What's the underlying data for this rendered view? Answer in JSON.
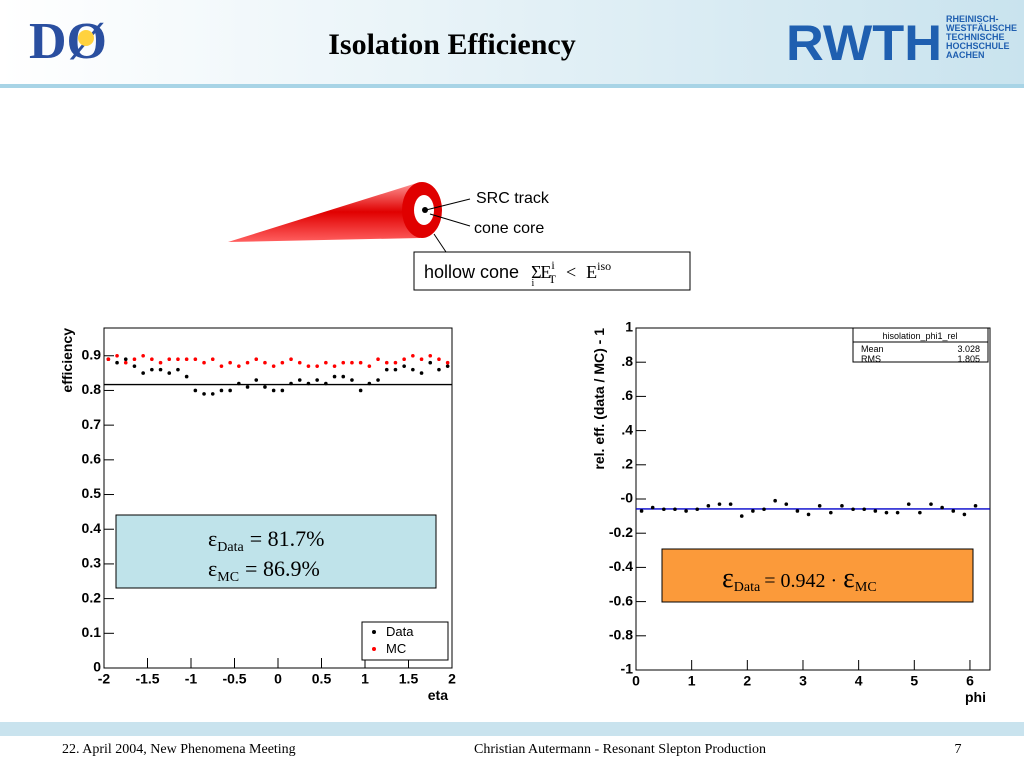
{
  "header": {
    "title": "Isolation Efficiency",
    "logo_left": "DØ",
    "logo_right": "RWTH",
    "logo_right_lines": [
      "RHEINISCH-",
      "WESTFÄLISCHE",
      "TECHNISCHE",
      "HOCHSCHULE",
      "AACHEN"
    ]
  },
  "diagram": {
    "src_track": "SRC track",
    "cone_core": "cone core",
    "formula": {
      "label": "hollow cone",
      "sum": "Σ",
      "sum_sub": "i",
      "E": "E",
      "E_sub": "T",
      "E_sup": "i",
      "lt": "<",
      "rhs": "E",
      "rhs_sup": "iso"
    }
  },
  "chart_data": [
    {
      "type": "scatter",
      "xlabel": "eta",
      "ylabel": "efficiency",
      "xlim": [
        -2,
        2
      ],
      "ylim": [
        0,
        0.98
      ],
      "xticks": [
        -2,
        -1.5,
        -1,
        -0.5,
        0,
        0.5,
        1,
        1.5,
        2
      ],
      "yticks": [
        0,
        0.1,
        0.2,
        0.3,
        0.4,
        0.5,
        0.6,
        0.7,
        0.8,
        0.9
      ],
      "reference_line": 0.817,
      "x": [
        -1.95,
        -1.85,
        -1.75,
        -1.65,
        -1.55,
        -1.45,
        -1.35,
        -1.25,
        -1.15,
        -1.05,
        -0.95,
        -0.85,
        -0.75,
        -0.65,
        -0.55,
        -0.45,
        -0.35,
        -0.25,
        -0.15,
        -0.05,
        0.05,
        0.15,
        0.25,
        0.35,
        0.45,
        0.55,
        0.65,
        0.75,
        0.85,
        0.95,
        1.05,
        1.15,
        1.25,
        1.35,
        1.45,
        1.55,
        1.65,
        1.75,
        1.85,
        1.95
      ],
      "series": [
        {
          "name": "Data",
          "color": "#000000",
          "values": [
            0.89,
            0.88,
            0.89,
            0.87,
            0.85,
            0.86,
            0.86,
            0.85,
            0.86,
            0.84,
            0.8,
            0.79,
            0.79,
            0.8,
            0.8,
            0.82,
            0.81,
            0.83,
            0.81,
            0.8,
            0.8,
            0.82,
            0.83,
            0.82,
            0.83,
            0.82,
            0.84,
            0.84,
            0.83,
            0.8,
            0.82,
            0.83,
            0.86,
            0.86,
            0.87,
            0.86,
            0.85,
            0.88,
            0.86,
            0.87
          ]
        },
        {
          "name": "MC",
          "color": "#ff0000",
          "values": [
            0.89,
            0.9,
            0.88,
            0.89,
            0.9,
            0.89,
            0.88,
            0.89,
            0.89,
            0.89,
            0.89,
            0.88,
            0.89,
            0.87,
            0.88,
            0.87,
            0.88,
            0.89,
            0.88,
            0.87,
            0.88,
            0.89,
            0.88,
            0.87,
            0.87,
            0.88,
            0.87,
            0.88,
            0.88,
            0.88,
            0.87,
            0.89,
            0.88,
            0.88,
            0.89,
            0.9,
            0.89,
            0.9,
            0.89,
            0.88
          ]
        }
      ],
      "annotation": [
        {
          "symbol": "ε",
          "sub": "Data",
          "text": "= 81.7%"
        },
        {
          "symbol": "ε",
          "sub": "MC",
          "text": "= 86.9%"
        }
      ]
    },
    {
      "type": "scatter",
      "xlabel": "phi",
      "ylabel": "rel. eff. (data / MC) - 1",
      "xlim": [
        0,
        6.36
      ],
      "ylim": [
        -1,
        1
      ],
      "xticks": [
        0,
        1,
        2,
        3,
        4,
        5,
        6
      ],
      "yticks": [
        1,
        {
          "value": 0.8,
          "label": ".8"
        },
        {
          "value": 0.6,
          "label": ".6"
        },
        {
          "value": 0.4,
          "label": ".4"
        },
        {
          "value": 0.2,
          "label": ".2"
        },
        {
          "value": 0,
          "label": "-0"
        },
        -0.2,
        -0.4,
        -0.6,
        -0.8,
        -1
      ],
      "reference_line": -0.058,
      "x": [
        0.1,
        0.3,
        0.5,
        0.7,
        0.9,
        1.1,
        1.3,
        1.5,
        1.7,
        1.9,
        2.1,
        2.3,
        2.5,
        2.7,
        2.9,
        3.1,
        3.3,
        3.5,
        3.7,
        3.9,
        4.1,
        4.3,
        4.5,
        4.7,
        4.9,
        5.1,
        5.3,
        5.5,
        5.7,
        5.9,
        6.1
      ],
      "series": [
        {
          "name": null,
          "color": "#000000",
          "values": [
            -0.07,
            -0.05,
            -0.06,
            -0.06,
            -0.07,
            -0.06,
            -0.04,
            -0.03,
            -0.03,
            -0.1,
            -0.07,
            -0.06,
            -0.01,
            -0.03,
            -0.07,
            -0.09,
            -0.04,
            -0.08,
            -0.04,
            -0.06,
            -0.06,
            -0.07,
            -0.08,
            -0.08,
            -0.03,
            -0.08,
            -0.03,
            -0.05,
            -0.07,
            -0.09,
            -0.04
          ]
        }
      ],
      "stats": {
        "title": "hisolation_phi1_rel",
        "rows": [
          [
            "Mean",
            "3.028"
          ],
          [
            "RMS",
            "1.805"
          ]
        ]
      },
      "annotation": [
        {
          "symbol": "ε",
          "sub": "Data",
          "text": "= 0.942 ·",
          "symbol2": "ε",
          "sub2": "MC"
        }
      ]
    }
  ],
  "footer": {
    "left": "22. April 2004, New Phenomena Meeting",
    "center": "Christian Autermann  -  Resonant Slepton Production",
    "page": "7"
  }
}
